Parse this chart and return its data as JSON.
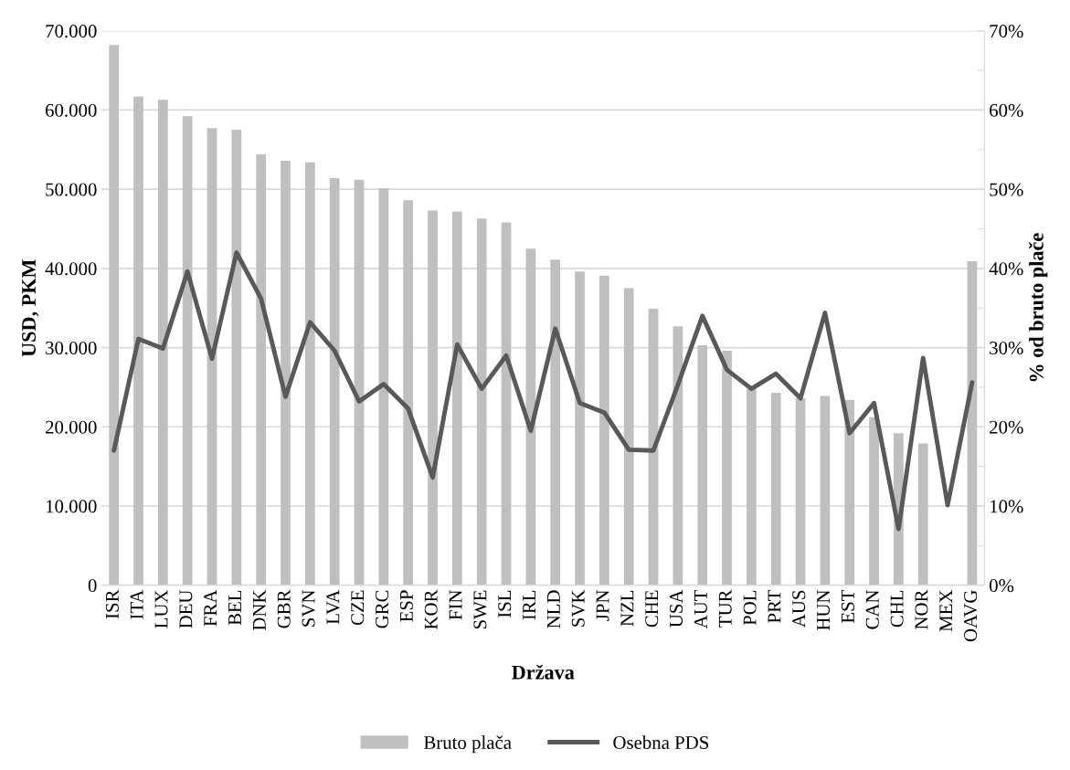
{
  "chart_data": {
    "type": "bar",
    "xlabel": "Država",
    "ylabel": "USD, PKM",
    "y2label": "% od bruto plače",
    "categories": [
      "ISR",
      "ITA",
      "LUX",
      "DEU",
      "FRA",
      "BEL",
      "DNK",
      "GBR",
      "SVN",
      "LVA",
      "CZE",
      "GRC",
      "ESP",
      "KOR",
      "FIN",
      "SWE",
      "ISL",
      "IRL",
      "NLD",
      "SVK",
      "JPN",
      "NZL",
      "CHE",
      "USA",
      "AUT",
      "TUR",
      "POL",
      "PRT",
      "AUS",
      "HUN",
      "EST",
      "CAN",
      "CHL",
      "NOR",
      "MEX",
      "OAVG"
    ],
    "series": [
      {
        "name": "Bruto plača",
        "color": "#bfbfbf",
        "values": [
          68200,
          61700,
          61300,
          59200,
          57700,
          57500,
          54400,
          53600,
          53400,
          51400,
          51200,
          50100,
          48600,
          47300,
          47200,
          46300,
          45800,
          42500,
          41100,
          39600,
          39100,
          37500,
          34900,
          32700,
          30300,
          29600,
          24800,
          24300,
          23600,
          23900,
          23400,
          21200,
          19200,
          17900,
          null,
          40900
        ]
      },
      {
        "name": "Osebna PDS",
        "type": "line",
        "axis": "y2",
        "color": "#595959",
        "line_style": "solid",
        "marker": "none",
        "values": [
          17.0,
          31.1,
          29.9,
          39.6,
          28.6,
          42.0,
          36.2,
          23.8,
          33.2,
          29.6,
          23.2,
          25.4,
          22.3,
          13.6,
          30.4,
          24.8,
          29.0,
          19.5,
          32.4,
          23.0,
          21.8,
          17.1,
          17.0,
          25.3,
          34.0,
          27.2,
          24.8,
          26.7,
          23.6,
          34.4,
          19.2,
          23.0,
          7.1,
          28.7,
          10.1,
          25.6
        ]
      }
    ],
    "ylim": [
      0,
      70000
    ],
    "yticks": [
      {
        "value": 0,
        "label": "0"
      },
      {
        "value": 10000,
        "label": "10.000"
      },
      {
        "value": 20000,
        "label": "20.000"
      },
      {
        "value": 30000,
        "label": "30.000"
      },
      {
        "value": 40000,
        "label": "40.000"
      },
      {
        "value": 50000,
        "label": "50.000"
      },
      {
        "value": 60000,
        "label": "60.000"
      },
      {
        "value": 70000,
        "label": "70.000"
      }
    ],
    "y2lim": [
      0,
      70
    ],
    "y2ticks": [
      {
        "value": 0,
        "label": "0%"
      },
      {
        "value": 5,
        "label": null
      },
      {
        "value": 10,
        "label": "10%"
      },
      {
        "value": 15,
        "label": null
      },
      {
        "value": 20,
        "label": "20%"
      },
      {
        "value": 25,
        "label": null
      },
      {
        "value": 30,
        "label": "30%"
      },
      {
        "value": 35,
        "label": null
      },
      {
        "value": 40,
        "label": "40%"
      },
      {
        "value": 45,
        "label": null
      },
      {
        "value": 50,
        "label": "50%"
      },
      {
        "value": 55,
        "label": null
      },
      {
        "value": 60,
        "label": "60%"
      },
      {
        "value": 65,
        "label": null
      },
      {
        "value": 70,
        "label": "70%"
      }
    ],
    "grid": "y",
    "legend": "bottom"
  }
}
